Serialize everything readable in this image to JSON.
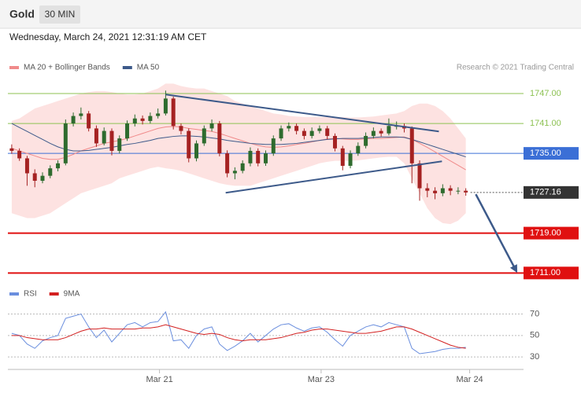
{
  "header": {
    "symbol": "Gold",
    "interval": "30 MIN",
    "timestamp": "Wednesday, March 24, 2021 12:31:19 AM CET",
    "credit": "Research © 2021 Trading Central"
  },
  "chart_data": [
    {
      "type": "candlestick",
      "xlim": [
        -0.5,
        66.5
      ],
      "ylim": [
        1709,
        1750
      ],
      "up_color": "#2e6b2e",
      "down_color": "#a52222",
      "candles": [
        [
          1736,
          1736.8,
          1734.9,
          1735.5
        ],
        [
          1735.5,
          1736,
          1733.5,
          1734
        ],
        [
          1734,
          1734.5,
          1728.5,
          1731
        ],
        [
          1731,
          1731.8,
          1728.2,
          1729.5
        ],
        [
          1729.5,
          1731.2,
          1729,
          1730.5
        ],
        [
          1730.5,
          1732.6,
          1730,
          1732
        ],
        [
          1732,
          1733.6,
          1731.4,
          1733
        ],
        [
          1733,
          1741.8,
          1732.6,
          1741
        ],
        [
          1741,
          1743.2,
          1740.4,
          1742.5
        ],
        [
          1742.5,
          1744.2,
          1741.8,
          1743
        ],
        [
          1743,
          1743.5,
          1739.4,
          1740
        ],
        [
          1740,
          1740.6,
          1736.3,
          1737
        ],
        [
          1737,
          1740.2,
          1736.6,
          1739.5
        ],
        [
          1739.5,
          1740,
          1734.6,
          1735.5
        ],
        [
          1735.5,
          1738.6,
          1735,
          1738
        ],
        [
          1738,
          1741.6,
          1737.5,
          1741
        ],
        [
          1741,
          1742.8,
          1740.4,
          1742
        ],
        [
          1742,
          1742.6,
          1740.8,
          1741.5
        ],
        [
          1741.5,
          1743.2,
          1741,
          1742.5
        ],
        [
          1742.5,
          1744,
          1742,
          1743
        ],
        [
          1743,
          1747.6,
          1742.6,
          1746
        ],
        [
          1746,
          1746.4,
          1739.8,
          1740.5
        ],
        [
          1740.5,
          1741,
          1738.8,
          1739.5
        ],
        [
          1739.5,
          1740,
          1733.2,
          1734
        ],
        [
          1734,
          1737.6,
          1733.4,
          1737
        ],
        [
          1737,
          1740.6,
          1736.5,
          1740
        ],
        [
          1740,
          1741.8,
          1739.4,
          1741
        ],
        [
          1741,
          1741.5,
          1734.4,
          1735
        ],
        [
          1735,
          1735.6,
          1730.2,
          1731
        ],
        [
          1731,
          1732.2,
          1729.8,
          1731.5
        ],
        [
          1731.5,
          1733.6,
          1731,
          1733
        ],
        [
          1733,
          1736.2,
          1732.4,
          1735.5
        ],
        [
          1735.5,
          1736,
          1732.4,
          1733
        ],
        [
          1733,
          1735.6,
          1732.5,
          1735
        ],
        [
          1735,
          1738.6,
          1734.5,
          1738
        ],
        [
          1738,
          1740.6,
          1737.5,
          1740
        ],
        [
          1740,
          1741.2,
          1739.4,
          1740.5
        ],
        [
          1740.5,
          1741,
          1738.8,
          1739.5
        ],
        [
          1739.5,
          1740,
          1737.8,
          1738.5
        ],
        [
          1738.5,
          1740.2,
          1738,
          1739.5
        ],
        [
          1739.5,
          1740.6,
          1739,
          1740
        ],
        [
          1740,
          1740.5,
          1737.8,
          1738.5
        ],
        [
          1738.5,
          1739,
          1735.4,
          1736
        ],
        [
          1736,
          1736.5,
          1731.6,
          1732.5
        ],
        [
          1732.5,
          1735.6,
          1732,
          1735
        ],
        [
          1735,
          1737.2,
          1734.5,
          1736.5
        ],
        [
          1736.5,
          1739.2,
          1736,
          1738.5
        ],
        [
          1738.5,
          1740.2,
          1738,
          1739.5
        ],
        [
          1739.5,
          1740,
          1738.4,
          1739
        ],
        [
          1739,
          1742,
          1738.6,
          1740.5
        ],
        [
          1740.5,
          1741.4,
          1739.8,
          1740.5
        ],
        [
          1740.5,
          1741,
          1739.2,
          1740
        ],
        [
          1740,
          1740.4,
          1729,
          1733
        ],
        [
          1733,
          1733.6,
          1725.5,
          1728
        ],
        [
          1728,
          1729,
          1726.2,
          1727.5
        ],
        [
          1727.5,
          1728.2,
          1725.8,
          1727
        ],
        [
          1727,
          1728.8,
          1726.4,
          1728
        ],
        [
          1728,
          1728.6,
          1726.6,
          1727.5
        ],
        [
          1727.5,
          1728.2,
          1726.8,
          1727.5
        ],
        [
          1727.5,
          1728,
          1726.5,
          1727.16
        ]
      ],
      "series": [
        {
          "name": "MA 20 + Bollinger Bands",
          "color": "#f08a8a",
          "band_color": "#fde2e1",
          "values": [
            1736,
            1735.5,
            1735,
            1734.5,
            1734,
            1733.8,
            1733.8,
            1734.2,
            1734.8,
            1735.5,
            1736,
            1736.5,
            1737,
            1737.3,
            1737.6,
            1738,
            1738.5,
            1739,
            1739.5,
            1740,
            1740.3,
            1740.4,
            1740.3,
            1740,
            1739.8,
            1739.6,
            1739.4,
            1739,
            1738.5,
            1738,
            1737.5,
            1737,
            1736.6,
            1736.3,
            1736.2,
            1736.3,
            1736.5,
            1736.8,
            1737,
            1737.3,
            1737.6,
            1737.9,
            1738,
            1737.9,
            1737.8,
            1737.8,
            1737.9,
            1738,
            1738,
            1738.1,
            1738.2,
            1738.3,
            1737.8,
            1737,
            1736.2,
            1735.3,
            1734.4,
            1733.5,
            1732.6,
            1731.7
          ],
          "upper": [
            1741.5,
            1742,
            1743,
            1744,
            1744.5,
            1745,
            1745.5,
            1746,
            1746.5,
            1747,
            1747.3,
            1747.5,
            1747.5,
            1747.3,
            1747,
            1746.8,
            1746.8,
            1747,
            1747.5,
            1748,
            1749,
            1749,
            1748.5,
            1748.2,
            1748,
            1748,
            1747.5,
            1747,
            1746.5,
            1745.5,
            1745,
            1744.5,
            1744,
            1743.5,
            1743,
            1742.8,
            1742.5,
            1742.4,
            1742.3,
            1742.3,
            1742.3,
            1742.3,
            1742.3,
            1742.3,
            1742.2,
            1742.2,
            1742.3,
            1742.4,
            1742.6,
            1742.8,
            1743,
            1743.5,
            1744.5,
            1745,
            1745,
            1744.5,
            1743.5,
            1742,
            1740,
            1738
          ],
          "lower": [
            1723,
            1722.5,
            1722,
            1722,
            1722.5,
            1723,
            1724,
            1725,
            1726,
            1727,
            1727.5,
            1728,
            1728.5,
            1729,
            1730,
            1730.5,
            1731,
            1731.5,
            1732,
            1732.3,
            1732,
            1731.8,
            1731.5,
            1731,
            1730.5,
            1730,
            1729.5,
            1729,
            1728.7,
            1728.5,
            1728.5,
            1728.5,
            1729,
            1729.5,
            1730,
            1730.5,
            1731,
            1731.5,
            1732,
            1732.5,
            1733,
            1733.3,
            1733.5,
            1733.5,
            1733.5,
            1733.6,
            1733.8,
            1734,
            1734.2,
            1734.3,
            1734.3,
            1733,
            1730,
            1727,
            1724,
            1722,
            1721,
            1720.8,
            1721.5,
            1723
          ]
        },
        {
          "name": "MA 50",
          "color": "#3d5a8a",
          "values": [
            1741,
            1740.2,
            1739.4,
            1738.6,
            1737.8,
            1737,
            1736.3,
            1735.8,
            1735.5,
            1735.5,
            1735.6,
            1735.8,
            1736,
            1736.2,
            1736.5,
            1736.8,
            1737,
            1737.3,
            1737.6,
            1738,
            1738.2,
            1738.4,
            1738.5,
            1738.5,
            1738.4,
            1738.3,
            1738.1,
            1737.9,
            1737.6,
            1737.4,
            1737.2,
            1737,
            1736.9,
            1736.8,
            1736.8,
            1736.8,
            1736.9,
            1737,
            1737.2,
            1737.4,
            1737.6,
            1737.8,
            1737.9,
            1738,
            1738,
            1738,
            1738.1,
            1738.2,
            1738.3,
            1738.3,
            1738.3,
            1738.2,
            1737.8,
            1737.3,
            1736.8,
            1736.3,
            1735.8,
            1735.3,
            1734.8,
            1734.3
          ]
        }
      ],
      "levels": [
        {
          "value": 1747,
          "label": "1747.00",
          "color": "#8cc152",
          "line_style": "solid",
          "label_style": "plain"
        },
        {
          "value": 1741,
          "label": "1741.00",
          "color": "#8cc152",
          "line_style": "solid",
          "label_style": "plain"
        },
        {
          "value": 1735,
          "label": "1735.00",
          "color": "#3b6fd6",
          "line_style": "solid",
          "label_style": "box"
        },
        {
          "value": 1727.16,
          "label": "1727.16",
          "color": "#333333",
          "line_style": "dotted",
          "label_style": "box"
        },
        {
          "value": 1719,
          "label": "1719.00",
          "color": "#e01010",
          "line_style": "bold",
          "label_style": "box"
        },
        {
          "value": 1711,
          "label": "1711.00",
          "color": "#e01010",
          "line_style": "bold",
          "label_style": "box"
        }
      ],
      "trendlines": [
        {
          "x": [
            20,
            55.5
          ],
          "y": [
            1746.8,
            1739.4
          ],
          "color": "#3d5a8a"
        },
        {
          "x": [
            27.8,
            55.9
          ],
          "y": [
            1727.1,
            1733.4
          ],
          "color": "#3d5a8a"
        }
      ],
      "arrow": {
        "x": [
          60.3,
          66
        ],
        "y": [
          1726.8,
          1711.3
        ],
        "color": "#3d5a8a"
      }
    },
    {
      "type": "line",
      "xlim": [
        -0.5,
        66.5
      ],
      "ylim": [
        22,
        77
      ],
      "yticks": [
        30,
        50,
        70
      ],
      "xticks": [
        {
          "value": 19.2,
          "label": "Mar 21"
        },
        {
          "value": 40.2,
          "label": "Mar 23"
        },
        {
          "value": 59.5,
          "label": "Mar 24"
        }
      ],
      "series": [
        {
          "name": "RSI",
          "color": "#6a8ede",
          "values": [
            52,
            50,
            42,
            38,
            45,
            48,
            50,
            66,
            68,
            70,
            58,
            48,
            55,
            44,
            52,
            60,
            62,
            58,
            62,
            63,
            72,
            45,
            46,
            38,
            50,
            56,
            58,
            42,
            36,
            40,
            45,
            52,
            44,
            50,
            56,
            60,
            61,
            57,
            54,
            57,
            58,
            53,
            46,
            40,
            50,
            54,
            58,
            60,
            58,
            62,
            60,
            58,
            38,
            33,
            34,
            35,
            37,
            38,
            38,
            39
          ]
        },
        {
          "name": "9MA",
          "color": "#d32020",
          "values": [
            50,
            50,
            48,
            47,
            46,
            46,
            46,
            48,
            51,
            54,
            56,
            56,
            57,
            56,
            56,
            56,
            56,
            57,
            57,
            58,
            60,
            58,
            56,
            54,
            52,
            51,
            52,
            51,
            48,
            46,
            45,
            46,
            46,
            46,
            47,
            48,
            50,
            52,
            53,
            55,
            56,
            56,
            55,
            54,
            53,
            52,
            52,
            53,
            54,
            56,
            58,
            58,
            56,
            53,
            50,
            47,
            44,
            41,
            39,
            38
          ]
        }
      ]
    }
  ]
}
